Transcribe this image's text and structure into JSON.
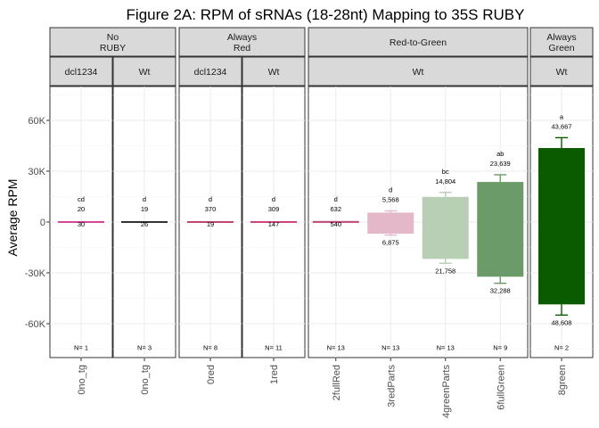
{
  "chart_data": {
    "type": "bar",
    "title": "Figure 2A: RPM of sRNAs (18-28nt) Mapping to 35S RUBY",
    "ylabel": "Average RPM",
    "ylim": [
      -80000,
      80000
    ],
    "yticks": [
      {
        "value": 60000,
        "label": "60K"
      },
      {
        "value": 30000,
        "label": "30K"
      },
      {
        "value": 0,
        "label": "0"
      },
      {
        "value": -30000,
        "label": "-30K"
      },
      {
        "value": -60000,
        "label": "-60K"
      }
    ],
    "n_label_y": -74000,
    "groups": [
      {
        "label": "No\nRUBY",
        "sub": [
          {
            "label": "dcl1234",
            "bars": [
              {
                "category": "0no_tg",
                "pos": 20,
                "neg": 30,
                "pos_label": "20",
                "neg_label": "30",
                "letter": "cd",
                "n": "N= 1",
                "color": "#c51b7d"
              }
            ]
          },
          {
            "label": "Wt",
            "bars": [
              {
                "category": "0no_tg",
                "pos": 19,
                "neg": 26,
                "pos_label": "19",
                "neg_label": "26",
                "letter": "d",
                "n": "N= 3",
                "color": "#000000"
              }
            ]
          }
        ]
      },
      {
        "label": "Always\nRed",
        "sub": [
          {
            "label": "dcl1234",
            "bars": [
              {
                "category": "0red",
                "pos": 370,
                "neg": 19,
                "pos_label": "370",
                "neg_label": "19",
                "letter": "d",
                "n": "N= 8",
                "color": "#b2184f"
              }
            ]
          },
          {
            "label": "Wt",
            "bars": [
              {
                "category": "1red",
                "pos": 309,
                "neg": 147,
                "pos_label": "309",
                "neg_label": "147",
                "letter": "d",
                "n": "N= 11",
                "color": "#c2185b"
              }
            ]
          }
        ]
      },
      {
        "label": "Red-to-Green",
        "sub": [
          {
            "label": "Wt",
            "bars": [
              {
                "category": "2fullRed",
                "pos": 632,
                "neg": 540,
                "pos_label": "632",
                "neg_label": "540",
                "letter": "d",
                "n": "N= 13",
                "color": "#c2527c"
              },
              {
                "category": "3redParts",
                "pos": 5568,
                "neg": 6875,
                "pos_label": "5,568",
                "neg_label": "6,875",
                "letter": "d",
                "n": "N= 13",
                "color": "#e4b7c9"
              },
              {
                "category": "4greenParts",
                "pos": 14804,
                "neg": 21758,
                "pos_label": "14,804",
                "neg_label": "21,758",
                "letter": "bc",
                "n": "N= 13",
                "color": "#b8cfb5"
              },
              {
                "category": "6fullGreen",
                "pos": 23639,
                "neg": 32288,
                "pos_label": "23,639",
                "neg_label": "32,288",
                "letter": "ab",
                "n": "N= 9",
                "color": "#6b9b68"
              }
            ]
          }
        ]
      },
      {
        "label": "Always\nGreen",
        "sub": [
          {
            "label": "Wt",
            "bars": [
              {
                "category": "8green",
                "pos": 43667,
                "neg": 48608,
                "pos_label": "43,667",
                "neg_label": "48,608",
                "letter": "a",
                "n": "N= 2",
                "color": "#0a5a00"
              }
            ]
          }
        ]
      }
    ]
  }
}
